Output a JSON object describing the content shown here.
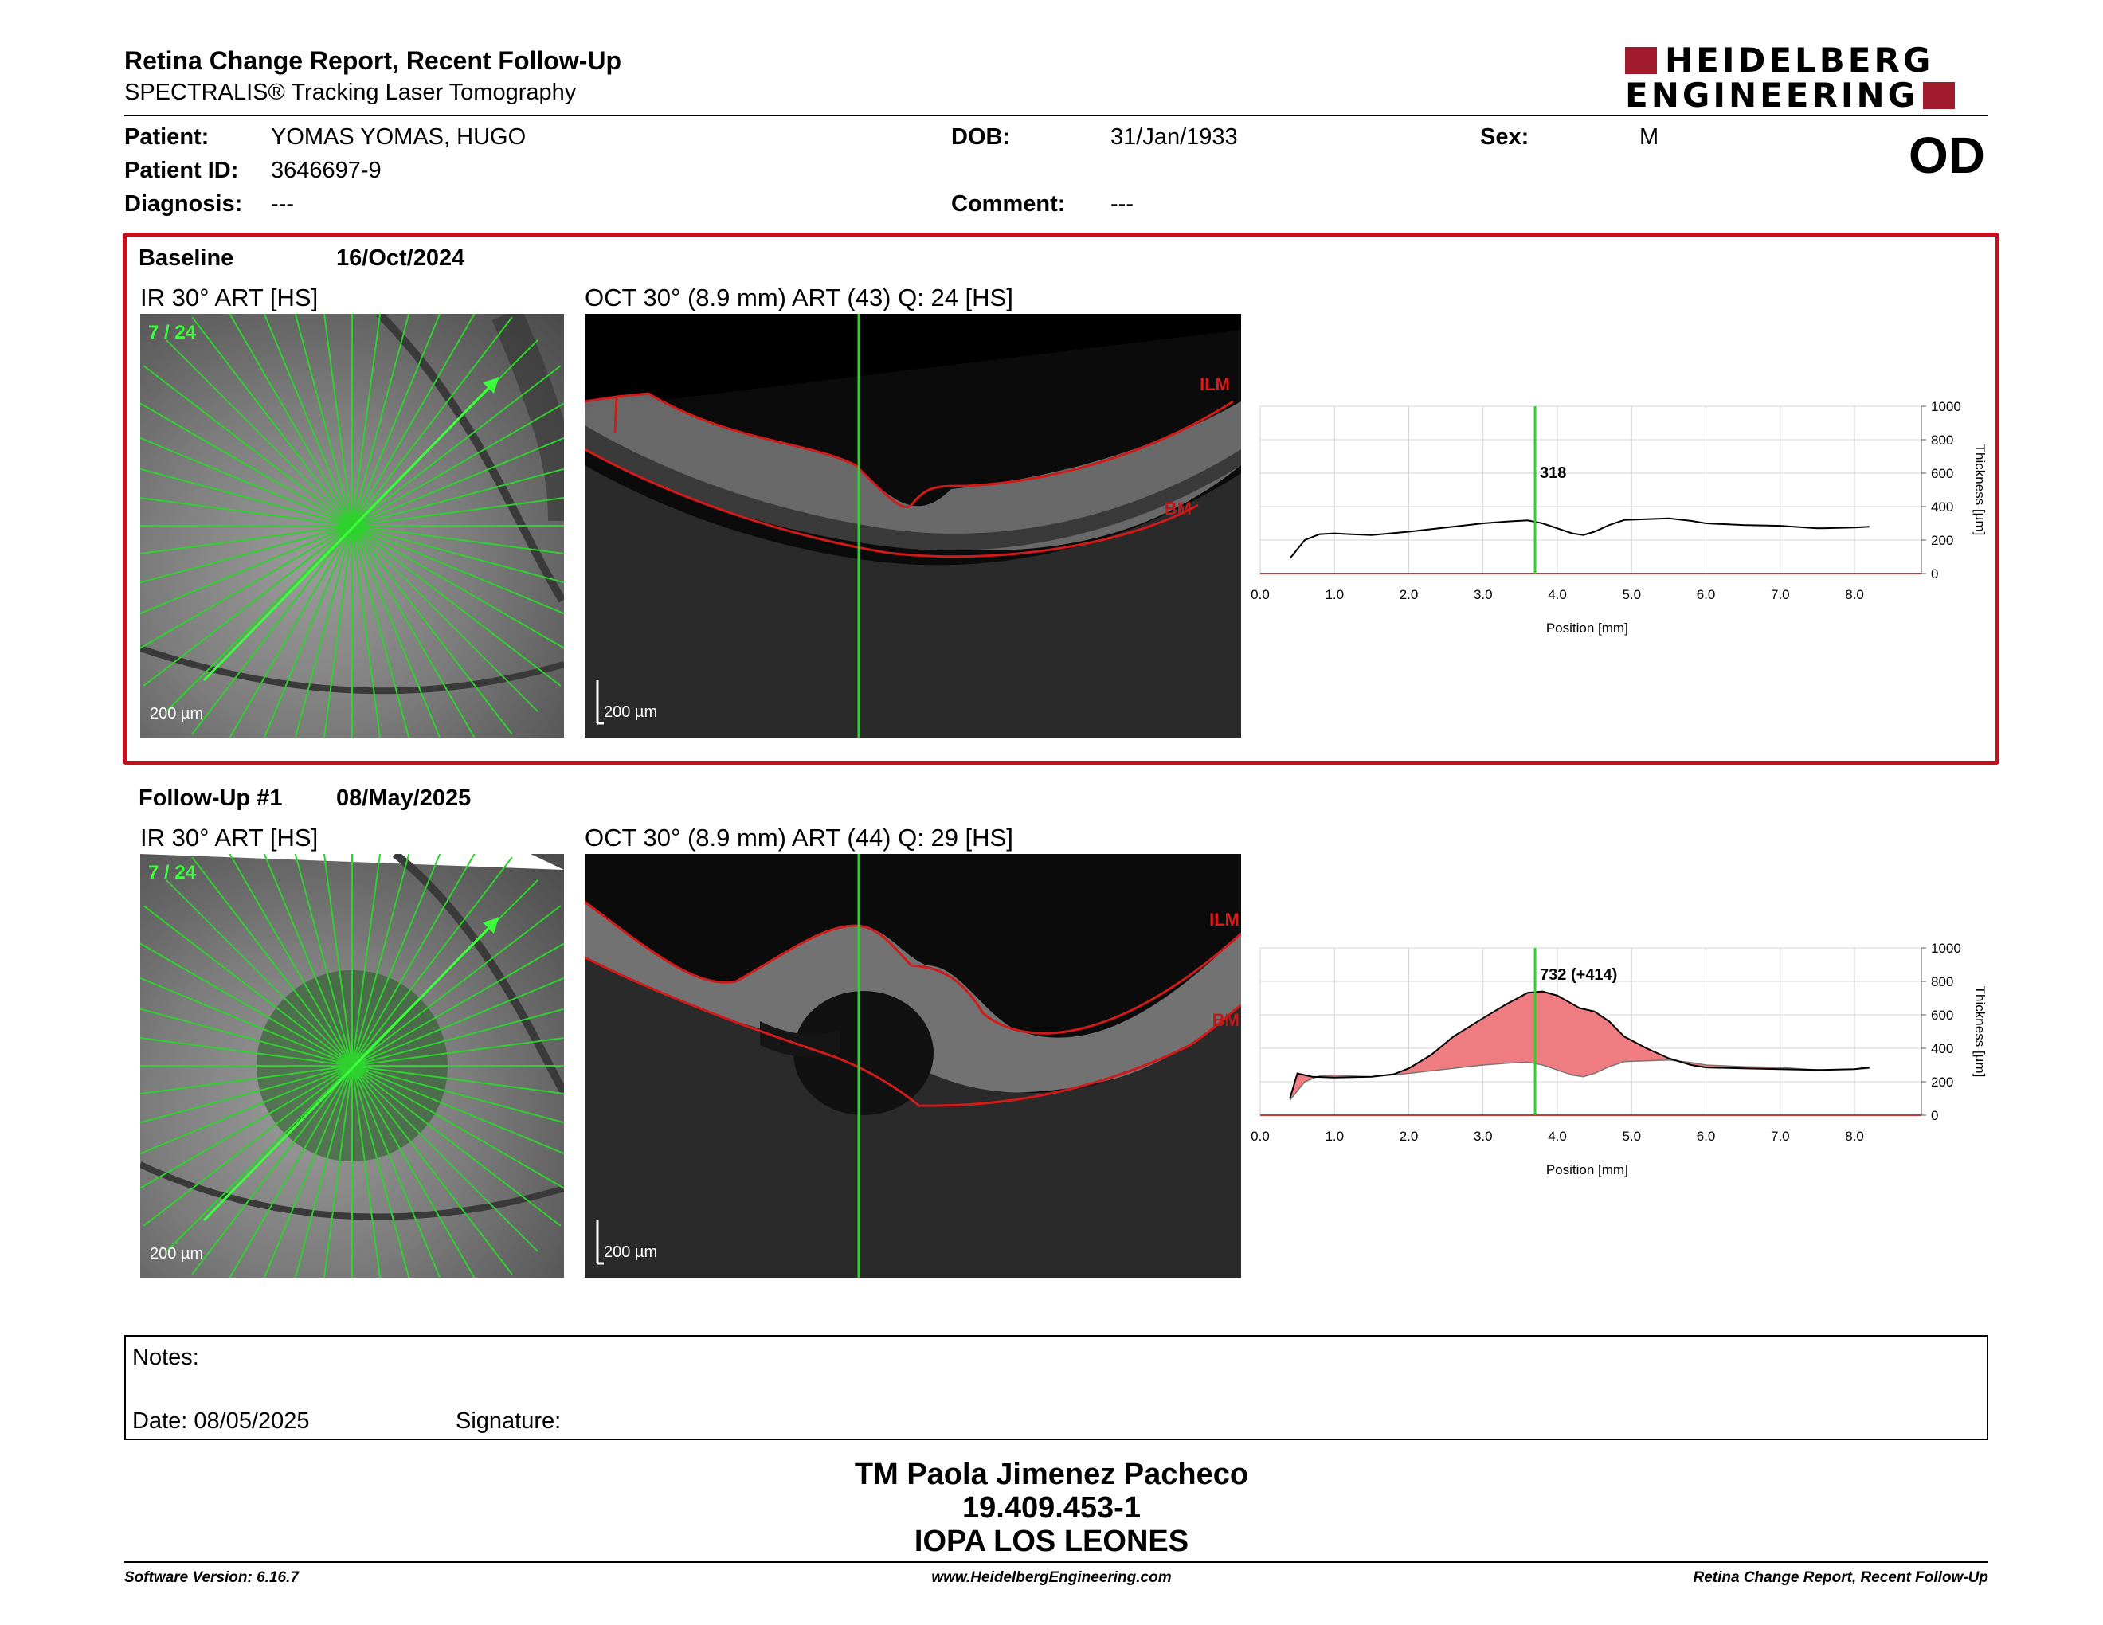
{
  "header": {
    "title": "Retina Change Report, Recent Follow-Up",
    "subtitle": "SPECTRALIS® Tracking Laser Tomography",
    "logo_line1": "HEIDELBERG",
    "logo_line2": "ENGINEERING",
    "eye": "OD"
  },
  "patient": {
    "patient_label": "Patient:",
    "patient_value": "YOMAS YOMAS, HUGO",
    "dob_label": "DOB:",
    "dob_value": "31/Jan/1933",
    "sex_label": "Sex:",
    "sex_value": "M",
    "id_label": "Patient ID:",
    "id_value": "3646697-9",
    "diagnosis_label": "Diagnosis:",
    "diagnosis_value": "---",
    "comment_label": "Comment:",
    "comment_value": "---"
  },
  "baseline": {
    "label": "Baseline",
    "date": "16/Oct/2024",
    "ir_title": "IR 30° ART [HS]",
    "oct_title": "OCT 30° (8.9 mm) ART (43) Q: 24 [HS]",
    "scan_index": "7 / 24",
    "scale": "200 µm",
    "ilm": "ILM",
    "bm": "BM"
  },
  "followup": {
    "label": "Follow-Up #1",
    "date": "08/May/2025",
    "ir_title": "IR 30° ART [HS]",
    "oct_title": "OCT 30° (8.9 mm) ART (44) Q: 29 [HS]",
    "scan_index": "7 / 24",
    "scale": "200 µm",
    "ilm": "ILM",
    "bm": "BM"
  },
  "chart_data": [
    {
      "type": "line",
      "xlabel": "Position [mm]",
      "ylabel": "Thickness [µm]",
      "xlim": [
        0,
        8.9
      ],
      "ylim": [
        0,
        1000
      ],
      "x_ticks": [
        "0.0",
        "1.0",
        "2.0",
        "3.0",
        "4.0",
        "5.0",
        "6.0",
        "7.0",
        "8.0"
      ],
      "y_ticks": [
        "0",
        "200",
        "400",
        "600",
        "800",
        "1000"
      ],
      "grid": true,
      "marker_x": 3.7,
      "marker_label": "318",
      "series": [
        {
          "x": [
            0.4,
            0.6,
            0.8,
            1.0,
            1.2,
            1.5,
            2.0,
            2.5,
            3.0,
            3.3,
            3.6,
            3.8,
            4.0,
            4.2,
            4.35,
            4.5,
            4.7,
            4.9,
            5.2,
            5.5,
            5.8,
            6.0,
            6.5,
            7.0,
            7.5,
            8.0,
            8.2
          ],
          "y": [
            90,
            200,
            235,
            240,
            235,
            230,
            250,
            275,
            300,
            310,
            318,
            300,
            270,
            240,
            230,
            250,
            290,
            320,
            325,
            330,
            315,
            300,
            290,
            285,
            270,
            275,
            280
          ]
        }
      ]
    },
    {
      "type": "area",
      "xlabel": "Position [mm]",
      "ylabel": "Thickness [µm]",
      "xlim": [
        0,
        8.9
      ],
      "ylim": [
        0,
        1000
      ],
      "x_ticks": [
        "0.0",
        "1.0",
        "2.0",
        "3.0",
        "4.0",
        "5.0",
        "6.0",
        "7.0",
        "8.0"
      ],
      "y_ticks": [
        "0",
        "200",
        "400",
        "600",
        "800",
        "1000"
      ],
      "grid": true,
      "marker_x": 3.7,
      "marker_label": "732 (+414)",
      "series": [
        {
          "x": [
            0.4,
            0.5,
            0.7,
            1.0,
            1.5,
            1.8,
            2.0,
            2.3,
            2.6,
            3.0,
            3.3,
            3.6,
            3.8,
            4.0,
            4.3,
            4.5,
            4.7,
            4.9,
            5.2,
            5.5,
            5.8,
            6.0,
            6.5,
            7.0,
            7.5,
            8.0,
            8.2
          ],
          "y": [
            100,
            250,
            230,
            225,
            230,
            245,
            280,
            360,
            470,
            580,
            660,
            732,
            740,
            715,
            640,
            620,
            560,
            470,
            400,
            340,
            300,
            285,
            280,
            275,
            270,
            275,
            285
          ]
        },
        {
          "x": [
            0.4,
            0.6,
            0.8,
            1.0,
            1.2,
            1.5,
            2.0,
            2.5,
            3.0,
            3.3,
            3.6,
            3.8,
            4.0,
            4.2,
            4.35,
            4.5,
            4.7,
            4.9,
            5.2,
            5.5,
            5.8,
            6.0,
            6.5,
            7.0,
            7.5,
            8.0,
            8.2
          ],
          "y": [
            90,
            200,
            235,
            240,
            235,
            230,
            250,
            275,
            300,
            310,
            318,
            300,
            270,
            240,
            230,
            250,
            290,
            320,
            325,
            330,
            315,
            300,
            290,
            285,
            270,
            275,
            280
          ]
        }
      ]
    }
  ],
  "notes": {
    "notes_label": "Notes:",
    "date_label": "Date: 08/05/2025",
    "signature_label": "Signature:"
  },
  "signer": {
    "name": "TM Paola Jimenez Pacheco",
    "id": "19.409.453-1",
    "clinic": "IOPA LOS LEONES"
  },
  "footer": {
    "left": "Software Version: 6.16.7",
    "center": "www.HeidelbergEngineering.com",
    "right": "Retina Change Report, Recent Follow-Up"
  },
  "colors": {
    "accent_red": "#c1121f",
    "logo_red": "#a01b2b",
    "scan_green": "#2ed12e",
    "delta_fill": "#ee7c80"
  }
}
